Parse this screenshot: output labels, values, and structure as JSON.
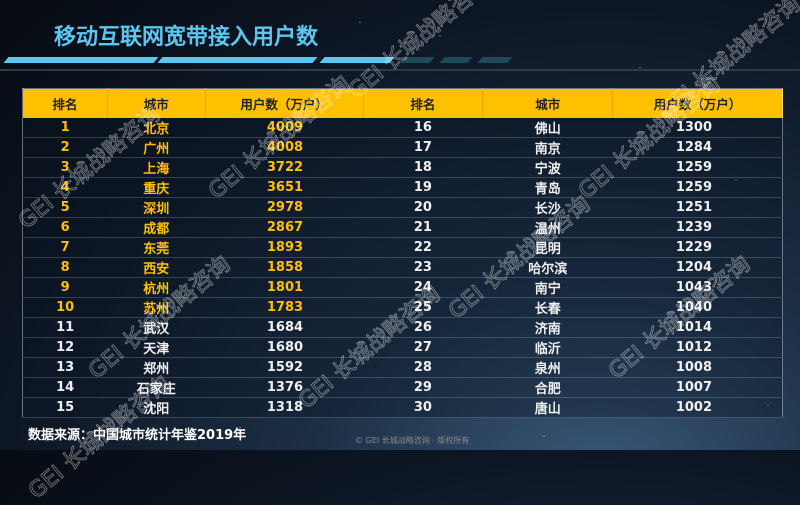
{
  "title": "移动互联网宽带接入用户数",
  "headers": [
    "排名",
    "城市",
    "用户数（万户）",
    "排名",
    "城市",
    "用户数（万户）"
  ],
  "rows_left": [
    [
      "1",
      "北京",
      "4009"
    ],
    [
      "2",
      "广州",
      "4008"
    ],
    [
      "3",
      "上海",
      "3722"
    ],
    [
      "4",
      "重庆",
      "3651"
    ],
    [
      "5",
      "深圳",
      "2978"
    ],
    [
      "6",
      "成都",
      "2867"
    ],
    [
      "7",
      "东莞",
      "1893"
    ],
    [
      "8",
      "西安",
      "1858"
    ],
    [
      "9",
      "杭州",
      "1801"
    ],
    [
      "10",
      "苏州",
      "1783"
    ],
    [
      "11",
      "武汉",
      "1684"
    ],
    [
      "12",
      "天津",
      "1680"
    ],
    [
      "13",
      "郑州",
      "1592"
    ],
    [
      "14",
      "石家庄",
      "1376"
    ],
    [
      "15",
      "沈阳",
      "1318"
    ]
  ],
  "rows_right": [
    [
      "16",
      "佛山",
      "1300"
    ],
    [
      "17",
      "南京",
      "1284"
    ],
    [
      "18",
      "宁波",
      "1259"
    ],
    [
      "19",
      "青岛",
      "1259"
    ],
    [
      "20",
      "长沙",
      "1251"
    ],
    [
      "21",
      "温州",
      "1239"
    ],
    [
      "22",
      "昆明",
      "1229"
    ],
    [
      "23",
      "哈尔滨",
      "1204"
    ],
    [
      "24",
      "南宁",
      "1043"
    ],
    [
      "25",
      "长春",
      "1040"
    ],
    [
      "26",
      "济南",
      "1014"
    ],
    [
      "27",
      "临沂",
      "1012"
    ],
    [
      "28",
      "泉州",
      "1008"
    ],
    [
      "29",
      "合肥",
      "1007"
    ],
    [
      "30",
      "唐山",
      "1002"
    ]
  ],
  "highlight_top": 10,
  "source": "数据来源：中国城市统计年鉴2019年",
  "copyright": "© GEI 长城战略咨询 · 版权所有",
  "watermark": "GEI 长城战略咨询",
  "colors": {
    "title": "#5cc6ee",
    "header": "#ffc000",
    "highlight": "#ffc000"
  }
}
